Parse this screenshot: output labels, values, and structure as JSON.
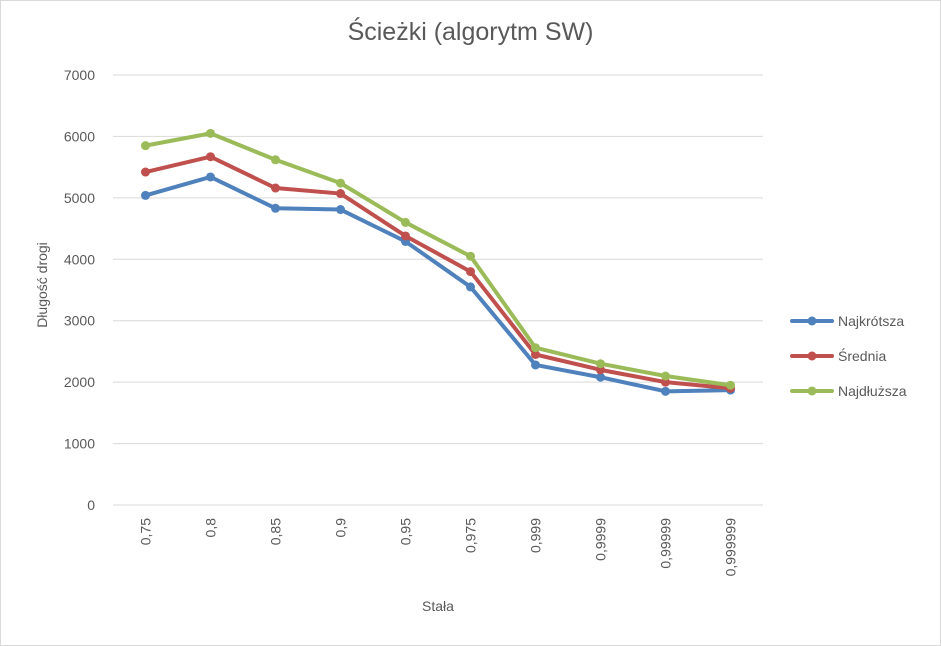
{
  "chart_data": {
    "type": "line",
    "title": "Ścieżki (algorytm SW)",
    "xlabel": "Stała",
    "ylabel": "Długość drogi",
    "categories": [
      "0,75",
      "0,8",
      "0,85",
      "0,9",
      "0,95",
      "0,975",
      "0,999",
      "0,9999",
      "0,99999",
      "0,999999"
    ],
    "ylim": [
      0,
      7000
    ],
    "yticks": [
      0,
      1000,
      2000,
      3000,
      4000,
      5000,
      6000,
      7000
    ],
    "grid": true,
    "legend_position": "right",
    "series": [
      {
        "name": "Najkrótsza",
        "color": "#4f81bd",
        "values": [
          5040,
          5340,
          4830,
          4810,
          4290,
          3550,
          2280,
          2080,
          1850,
          1870
        ]
      },
      {
        "name": "Średnia",
        "color": "#c0504d",
        "values": [
          5420,
          5670,
          5160,
          5070,
          4380,
          3800,
          2450,
          2200,
          2000,
          1900
        ]
      },
      {
        "name": "Najdłuższa",
        "color": "#9bbb59",
        "values": [
          5850,
          6050,
          5620,
          5240,
          4600,
          4050,
          2560,
          2300,
          2100,
          1950
        ]
      }
    ]
  }
}
